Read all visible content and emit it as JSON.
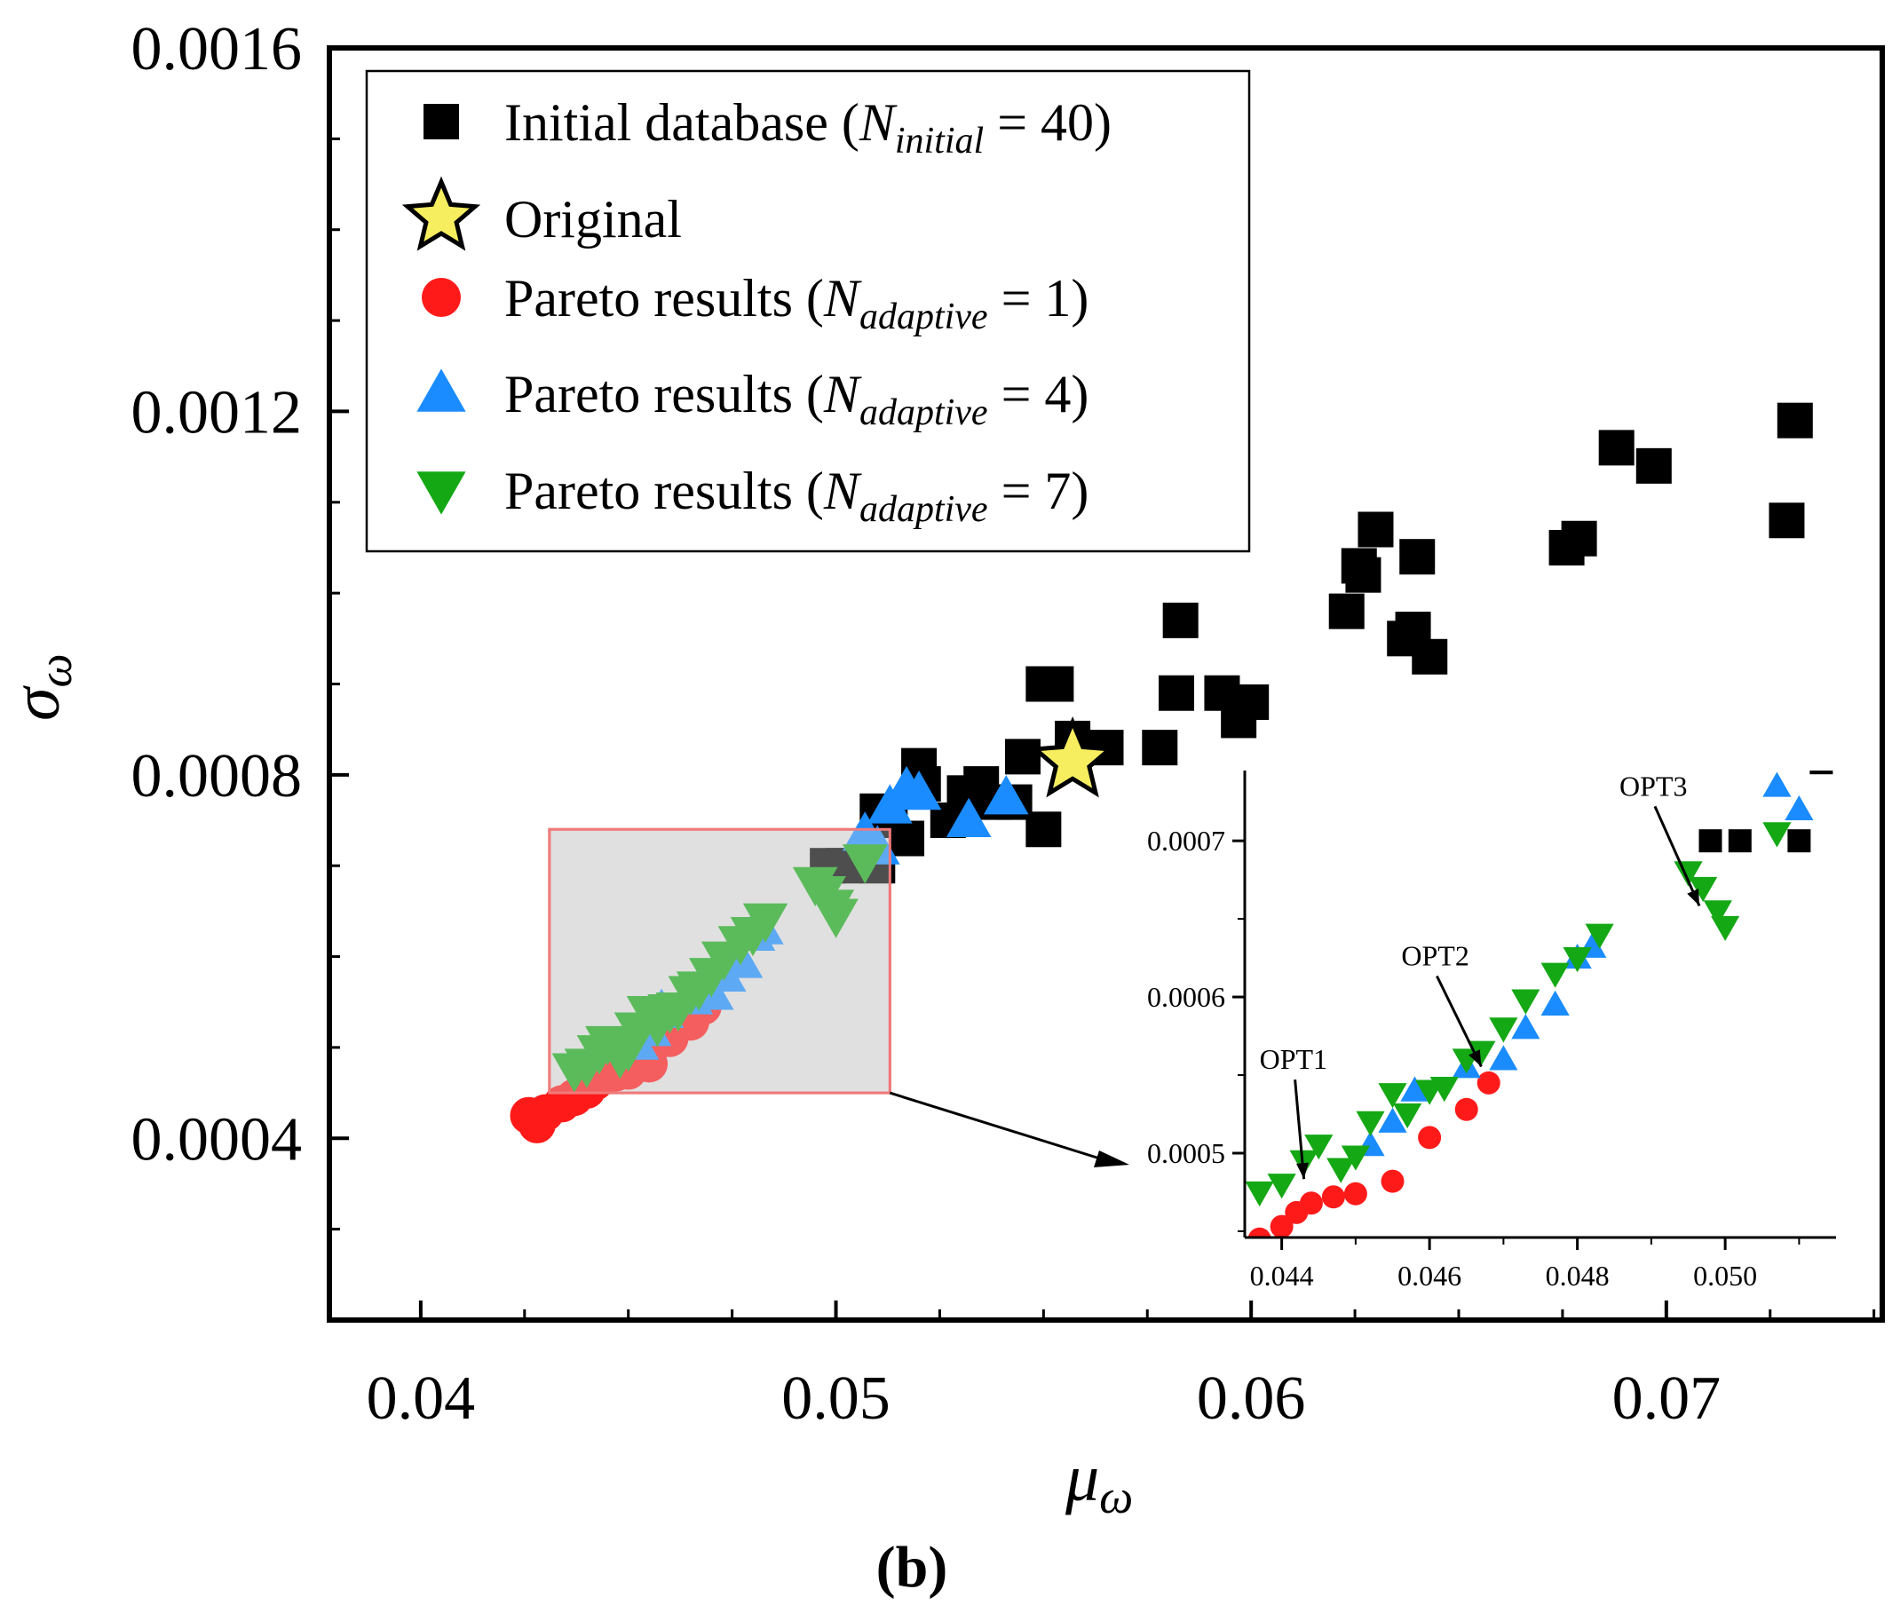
{
  "figure_label": "(b)",
  "colors": {
    "initial": "#000000",
    "original_fill": "#f6ee5f",
    "pareto1": "#ff1a1a",
    "pareto4": "#1a8cff",
    "pareto7": "#14a814",
    "zoom_box_fill": "#e0e0e0",
    "zoom_box_stroke": "#f07a7a"
  },
  "legend": {
    "initial": {
      "prefix": "Initial database (",
      "var": "N",
      "sub": "initial",
      "suffix": " = 40)"
    },
    "original": {
      "text": "Original"
    },
    "pareto1": {
      "prefix": "Pareto results (",
      "var": "N",
      "sub": "adaptive",
      "suffix": " = 1)"
    },
    "pareto4": {
      "prefix": "Pareto results (",
      "var": "N",
      "sub": "adaptive",
      "suffix": " = 4)"
    },
    "pareto7": {
      "prefix": "Pareto results (",
      "var": "N",
      "sub": "adaptive",
      "suffix": " = 7)"
    }
  },
  "chart_data": {
    "type": "scatter",
    "xlabel": {
      "symbol": "μ",
      "sub": "ω"
    },
    "ylabel": {
      "symbol": "σ",
      "sub": "ω"
    },
    "xlim": [
      0.0378,
      0.0752
    ],
    "ylim": [
      0.0002,
      0.0016
    ],
    "xticks": [
      0.04,
      0.05,
      0.06,
      0.07
    ],
    "xtick_labels": [
      "0.04",
      "0.05",
      "0.06",
      "0.07"
    ],
    "yticks": [
      0.0004,
      0.0008,
      0.0012,
      0.0016
    ],
    "ytick_labels": [
      "0.0004",
      "0.0008",
      "0.0012",
      "0.0016"
    ],
    "legend_position": "top-left",
    "series": [
      {
        "name": "Initial database",
        "marker": "square",
        "color": "#000000",
        "x": [
          0.0731,
          0.0729,
          0.0688,
          0.0697,
          0.0679,
          0.0676,
          0.064,
          0.063,
          0.0627,
          0.0626,
          0.0623,
          0.0639,
          0.0637,
          0.0643,
          0.0583,
          0.0582,
          0.0593,
          0.0597,
          0.06,
          0.0578,
          0.0565,
          0.0557,
          0.0553,
          0.055,
          0.0545,
          0.0535,
          0.0531,
          0.052,
          0.0521,
          0.0517,
          0.0513,
          0.051,
          0.0502,
          0.0498,
          0.051,
          0.0538,
          0.0557,
          0.055,
          0.0527,
          0.0543
        ],
        "y": [
          0.00119,
          0.00108,
          0.00116,
          0.00114,
          0.00106,
          0.00105,
          0.00104,
          0.00107,
          0.00102,
          0.00103,
          0.00098,
          0.00096,
          0.00095,
          0.00093,
          0.00097,
          0.00089,
          0.00089,
          0.00086,
          0.00088,
          0.00083,
          0.00083,
          0.00084,
          0.0009,
          0.0009,
          0.00082,
          0.00079,
          0.00078,
          0.00081,
          0.00079,
          0.00073,
          0.00075,
          0.0007,
          0.0007,
          0.0007,
          0.00076,
          0.00077,
          0.00082,
          0.00074,
          0.00075,
          0.00077
        ]
      },
      {
        "name": "Original",
        "marker": "star",
        "color": "#f6ee5f",
        "x": [
          0.0557
        ],
        "y": [
          0.000815
        ]
      },
      {
        "name": "Pareto results (N_adaptive = 1)",
        "marker": "circle",
        "color": "#ff1a1a",
        "x": [
          0.0426,
          0.0428,
          0.043,
          0.0434,
          0.0437,
          0.044,
          0.0442,
          0.0444,
          0.0447,
          0.045,
          0.0455,
          0.046,
          0.0465,
          0.0468
        ],
        "y": [
          0.000425,
          0.000415,
          0.000428,
          0.000438,
          0.000445,
          0.000453,
          0.000462,
          0.000468,
          0.000472,
          0.000474,
          0.000482,
          0.00051,
          0.000528,
          0.000545
        ]
      },
      {
        "name": "Pareto results (N_adaptive = 4)",
        "marker": "triangle-up",
        "color": "#1a8cff",
        "x": [
          0.0452,
          0.0455,
          0.0458,
          0.0465,
          0.047,
          0.0473,
          0.0477,
          0.048,
          0.0482,
          0.0507,
          0.0513,
          0.0517,
          0.052,
          0.0532,
          0.0541,
          0.051
        ],
        "y": [
          0.000505,
          0.00052,
          0.00054,
          0.000555,
          0.00056,
          0.00058,
          0.000595,
          0.000625,
          0.000632,
          0.000735,
          0.000765,
          0.000785,
          0.00078,
          0.00075,
          0.000775,
          0.00072
        ]
      },
      {
        "name": "Pareto results (N_adaptive = 7)",
        "marker": "triangle-down",
        "color": "#14a814",
        "x": [
          0.0437,
          0.044,
          0.0443,
          0.0445,
          0.0448,
          0.045,
          0.0452,
          0.0455,
          0.0457,
          0.046,
          0.0462,
          0.0465,
          0.0467,
          0.047,
          0.0473,
          0.0477,
          0.048,
          0.0483,
          0.0495,
          0.0497,
          0.0499,
          0.05,
          0.0507
        ],
        "y": [
          0.000475,
          0.00048,
          0.000495,
          0.000505,
          0.00049,
          0.000498,
          0.00052,
          0.000538,
          0.000525,
          0.00054,
          0.000542,
          0.00056,
          0.000565,
          0.00058,
          0.000598,
          0.000615,
          0.000625,
          0.00064,
          0.00068,
          0.00067,
          0.000655,
          0.000645,
          0.000705
        ]
      }
    ],
    "zoom_region": {
      "x": [
        0.0431,
        0.0513
      ],
      "y": [
        0.00045,
        0.00074
      ]
    },
    "inset": {
      "xlim": [
        0.0435,
        0.0515
      ],
      "ylim": [
        0.000446,
        0.000745
      ],
      "xticks": [
        0.044,
        0.046,
        0.048,
        0.05
      ],
      "xtick_labels": [
        "0.044",
        "0.046",
        "0.048",
        "0.050"
      ],
      "yticks": [
        0.0005,
        0.0006,
        0.0007
      ],
      "ytick_labels": [
        "0.0005",
        "0.0006",
        "0.0007"
      ],
      "annotations": [
        {
          "label": "OPT1",
          "x": 0.0443,
          "y": 0.00048
        },
        {
          "label": "OPT2",
          "x": 0.0467,
          "y": 0.000552
        },
        {
          "label": "OPT3",
          "x": 0.04965,
          "y": 0.000655
        }
      ]
    }
  }
}
